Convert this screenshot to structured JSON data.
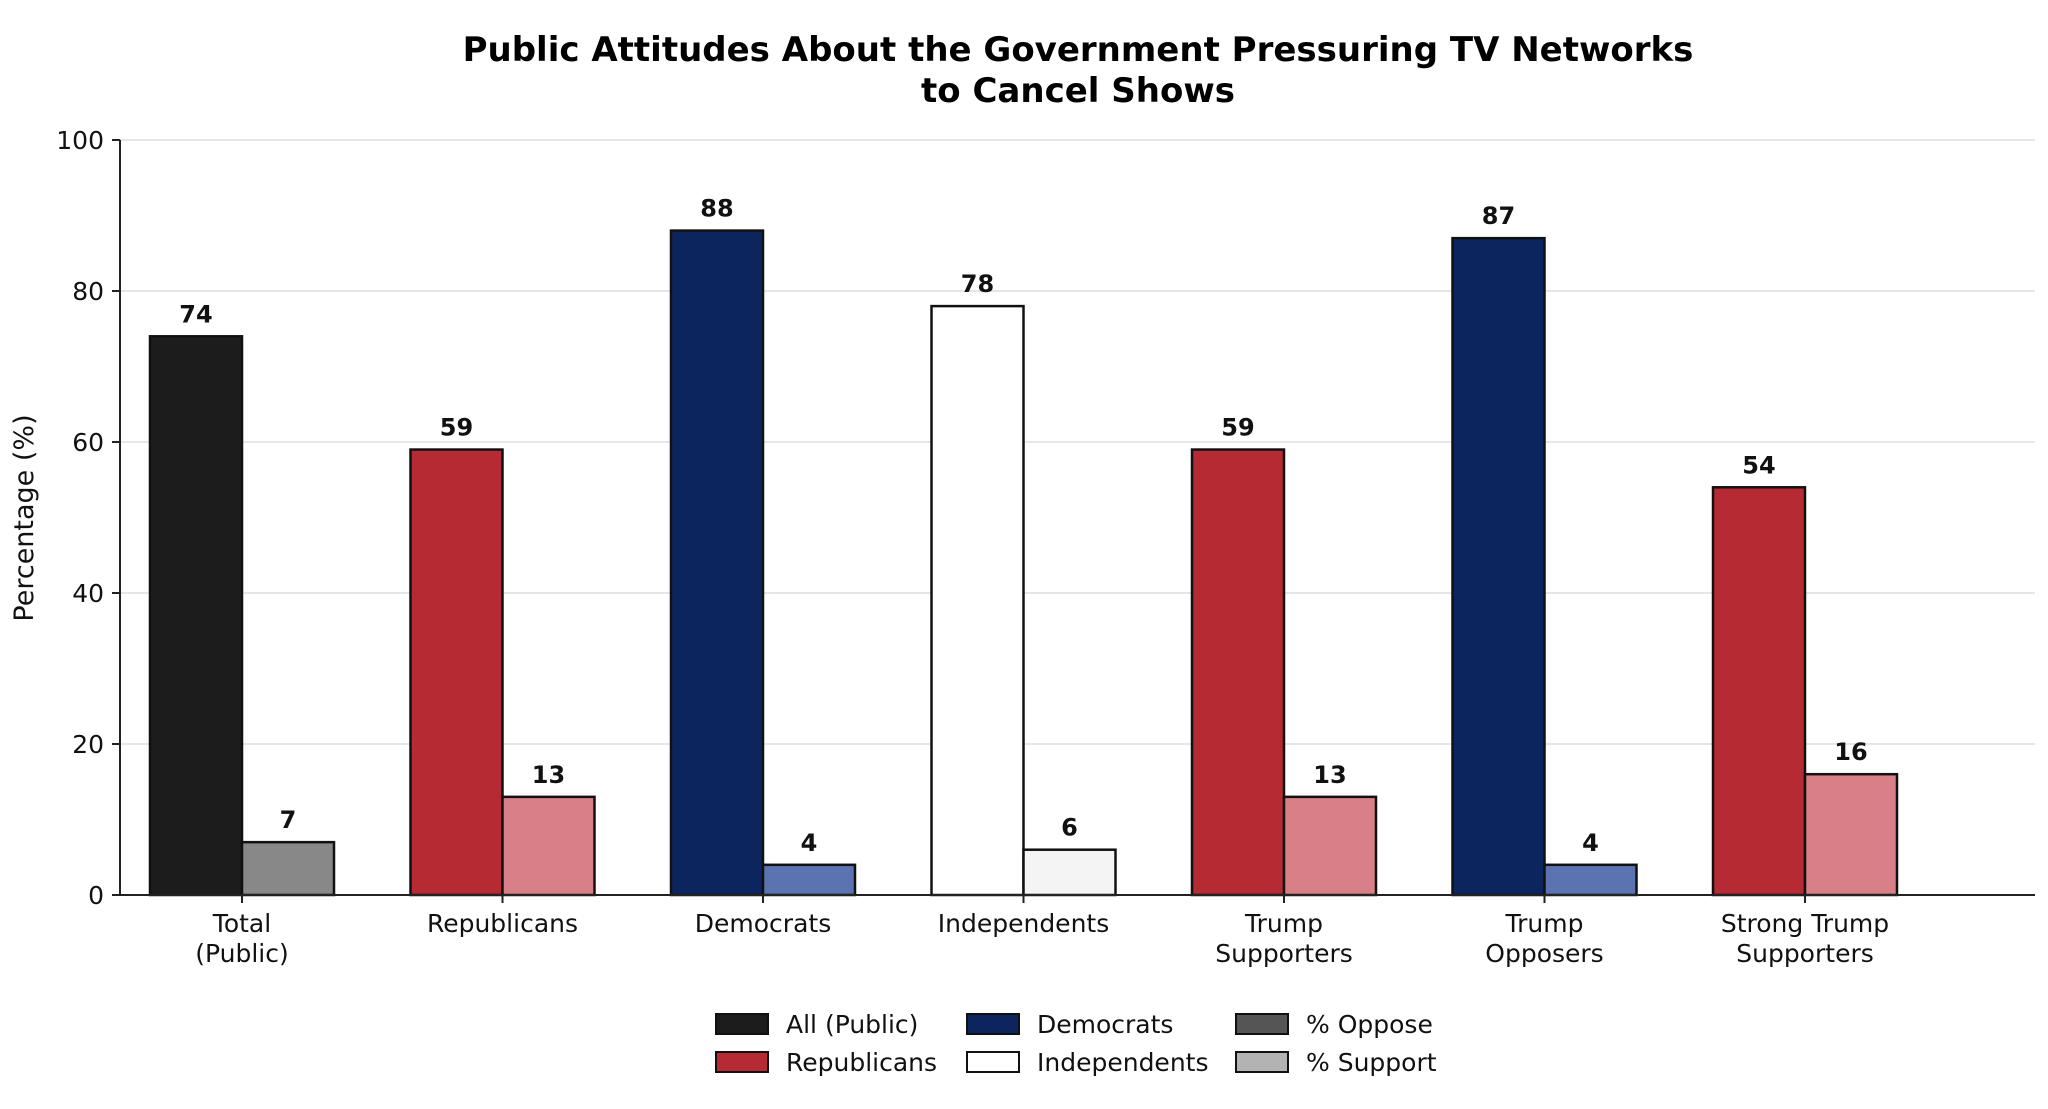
{
  "chart_data": {
    "type": "bar",
    "title": "Public Attitudes About the Government Pressuring TV Networks",
    "title_line2": "to Cancel Shows",
    "ylabel": "Percentage (%)",
    "xlabel": "",
    "ylim": [
      0,
      100
    ],
    "yticks": [
      0,
      20,
      40,
      60,
      80,
      100
    ],
    "grid": "horizontal",
    "legend_position": "bottom-center",
    "categories": [
      [
        "Total",
        "(Public)"
      ],
      [
        "Republicans"
      ],
      [
        "Democrats"
      ],
      [
        "Independents"
      ],
      [
        "Trump",
        "Supporters"
      ],
      [
        "Trump",
        "Opposers"
      ],
      [
        "Strong Trump",
        "Supporters"
      ]
    ],
    "series": [
      {
        "name": "% Oppose",
        "values": [
          74,
          59,
          88,
          78,
          59,
          87,
          54
        ],
        "colors": [
          "#1c1c1c",
          "#b52a33",
          "#0d255e",
          "#ffffff",
          "#b52a33",
          "#0d255e",
          "#b52a33"
        ]
      },
      {
        "name": "% Support",
        "values": [
          7,
          13,
          4,
          6,
          13,
          4,
          16
        ],
        "colors": [
          "#888888",
          "#d97f88",
          "#5b73b0",
          "#f4f4f4",
          "#d97f88",
          "#5b73b0",
          "#d97f88"
        ]
      }
    ],
    "legend": [
      {
        "label": "All (Public)",
        "color": "#1c1c1c"
      },
      {
        "label": "Republicans",
        "color": "#b52a33"
      },
      {
        "label": "Democrats",
        "color": "#0d255e"
      },
      {
        "label": "Independents",
        "color": "#ffffff"
      },
      {
        "label": "% Oppose",
        "color": "#555555"
      },
      {
        "label": "% Support",
        "color": "#b3b3b3"
      }
    ]
  }
}
